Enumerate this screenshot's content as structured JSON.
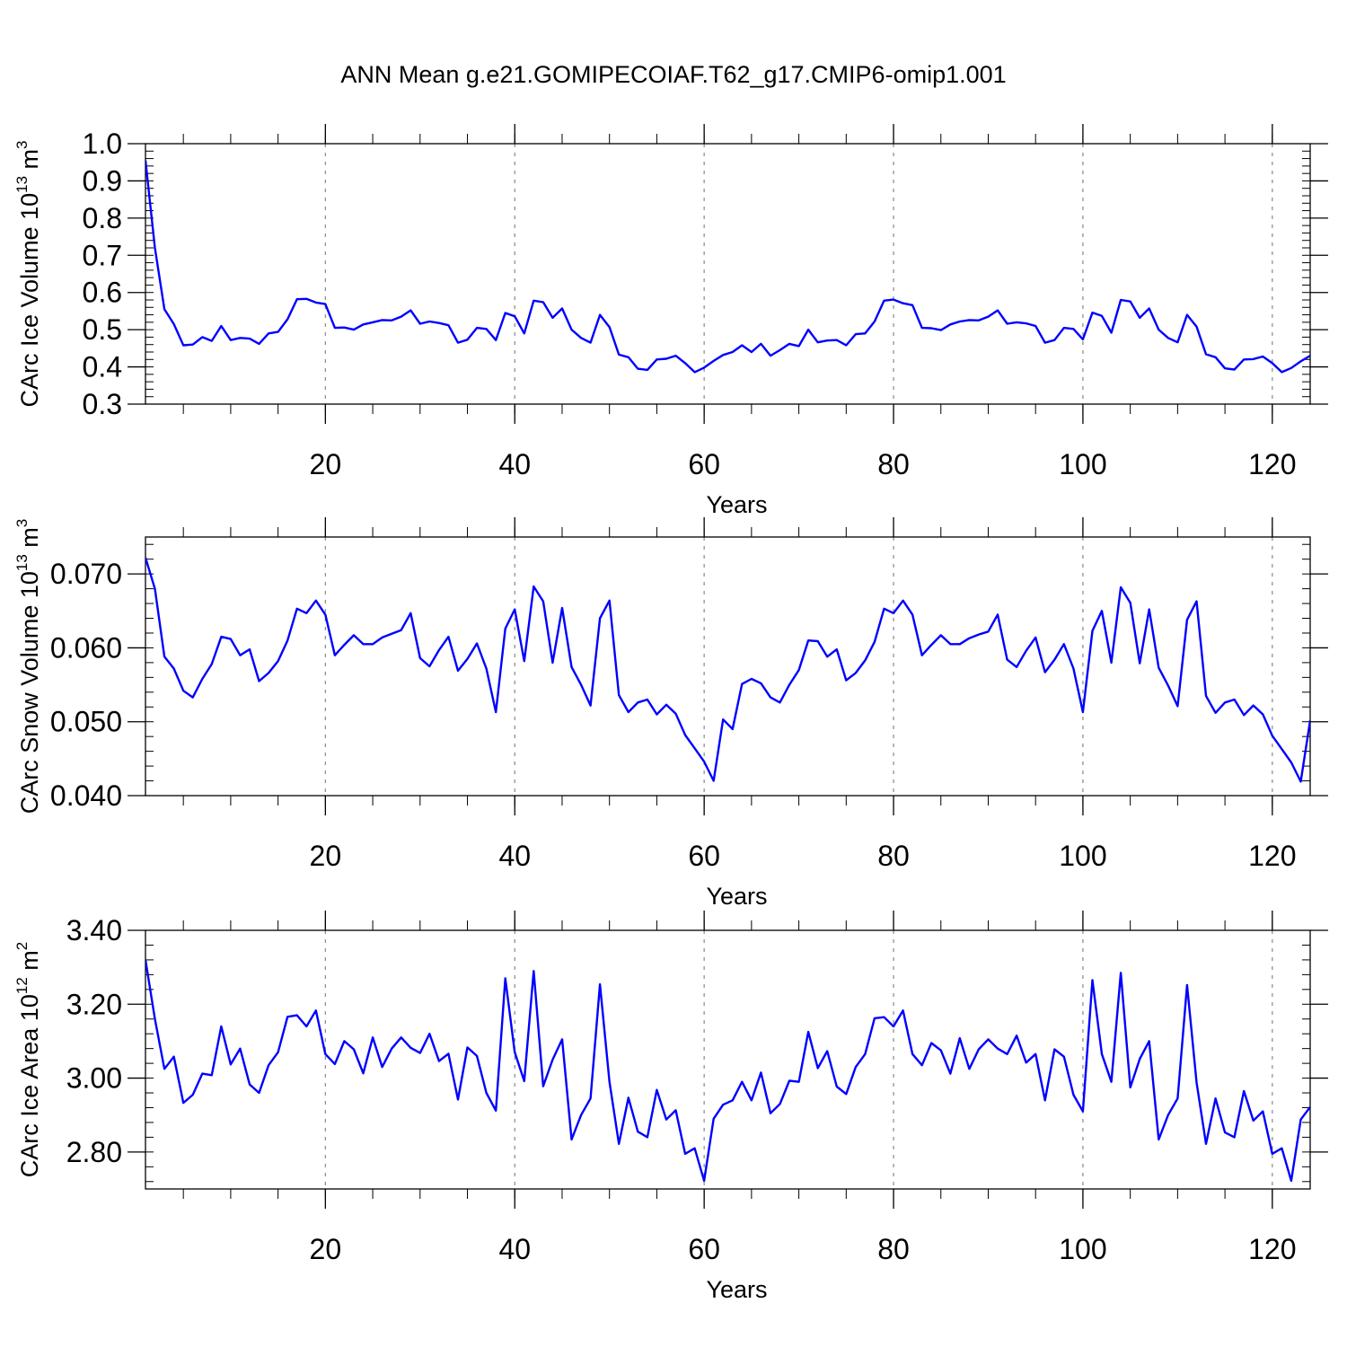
{
  "title": "ANN Mean g.e21.GOMIPECOIAF.T62_g17.CMIP6-omip1.001",
  "colors": {
    "line": "#0000ff",
    "axis": "#000000",
    "grid": "#888888"
  },
  "chart_data": [
    {
      "type": "line",
      "ylabel": "CArc Ice Volume 10",
      "ylabel_exp": "13",
      "ylabel_unit": " m",
      "ylabel_unit_exp": "3",
      "xlabel": "Years",
      "xlim": [
        1,
        124
      ],
      "ylim": [
        0.3,
        1.0
      ],
      "yticks": [
        0.3,
        0.4,
        0.5,
        0.6,
        0.7,
        0.8,
        0.9,
        1.0
      ],
      "ytick_labels": [
        "0.3",
        "0.4",
        "0.5",
        "0.6",
        "0.7",
        "0.8",
        "0.9",
        "1.0"
      ],
      "xticks": [
        20,
        40,
        60,
        80,
        100,
        120
      ],
      "xtick_labels": [
        "20",
        "40",
        "60",
        "80",
        "100",
        "120"
      ],
      "grid_x": true,
      "values": [
        0.955,
        0.72,
        0.555,
        0.515,
        0.458,
        0.46,
        0.48,
        0.47,
        0.51,
        0.472,
        0.478,
        0.476,
        0.462,
        0.49,
        0.494,
        0.528,
        0.582,
        0.583,
        0.573,
        0.569,
        0.505,
        0.506,
        0.5,
        0.514,
        0.52,
        0.526,
        0.525,
        0.535,
        0.552,
        0.516,
        0.522,
        0.518,
        0.512,
        0.465,
        0.473,
        0.505,
        0.502,
        0.472,
        0.545,
        0.536,
        0.49,
        0.578,
        0.574,
        0.532,
        0.557,
        0.5,
        0.478,
        0.465,
        0.54,
        0.507,
        0.433,
        0.426,
        0.395,
        0.392,
        0.42,
        0.422,
        0.43,
        0.41,
        0.386,
        0.398,
        0.416,
        0.432,
        0.44,
        0.458,
        0.44,
        0.462,
        0.43,
        0.445,
        0.462,
        0.456,
        0.5,
        0.466,
        0.471,
        0.472,
        0.458,
        0.488,
        0.49,
        0.522,
        0.578,
        0.581,
        0.571,
        0.566,
        0.505,
        0.504,
        0.499,
        0.514,
        0.522,
        0.526,
        0.525,
        0.535,
        0.552,
        0.516,
        0.52,
        0.517,
        0.51,
        0.465,
        0.472,
        0.505,
        0.502,
        0.474,
        0.546,
        0.537,
        0.492,
        0.58,
        0.576,
        0.532,
        0.557,
        0.5,
        0.478,
        0.466,
        0.54,
        0.508,
        0.434,
        0.426,
        0.396,
        0.393,
        0.42,
        0.421,
        0.428,
        0.41,
        0.386,
        0.397,
        0.415,
        0.43
      ]
    },
    {
      "type": "line",
      "ylabel": "CArc Snow Volume 10",
      "ylabel_exp": "13",
      "ylabel_unit": " m",
      "ylabel_unit_exp": "3",
      "xlabel": "Years",
      "xlim": [
        1,
        124
      ],
      "ylim": [
        0.04,
        0.075
      ],
      "yticks": [
        0.04,
        0.05,
        0.06,
        0.07
      ],
      "ytick_labels": [
        "0.040",
        "0.050",
        "0.060",
        "0.070"
      ],
      "xticks": [
        20,
        40,
        60,
        80,
        100,
        120
      ],
      "xtick_labels": [
        "20",
        "40",
        "60",
        "80",
        "100",
        "120"
      ],
      "grid_x": true,
      "values": [
        0.0722,
        0.068,
        0.0588,
        0.0572,
        0.0542,
        0.0533,
        0.0558,
        0.0578,
        0.0615,
        0.0612,
        0.059,
        0.0598,
        0.0555,
        0.0566,
        0.0582,
        0.061,
        0.0653,
        0.0647,
        0.0664,
        0.0645,
        0.059,
        0.0604,
        0.0617,
        0.0605,
        0.0605,
        0.0614,
        0.0619,
        0.0624,
        0.0647,
        0.0586,
        0.0575,
        0.0597,
        0.0615,
        0.0569,
        0.0585,
        0.0606,
        0.0572,
        0.0513,
        0.0626,
        0.0652,
        0.0582,
        0.0683,
        0.0663,
        0.058,
        0.0654,
        0.0574,
        0.055,
        0.0522,
        0.064,
        0.0664,
        0.0536,
        0.0513,
        0.0526,
        0.053,
        0.051,
        0.0523,
        0.0511,
        0.0482,
        0.0464,
        0.0446,
        0.042,
        0.0503,
        0.049,
        0.0551,
        0.0558,
        0.0552,
        0.0533,
        0.0526,
        0.055,
        0.057,
        0.061,
        0.0609,
        0.0588,
        0.0598,
        0.0556,
        0.0566,
        0.0583,
        0.0608,
        0.0653,
        0.0647,
        0.0664,
        0.0645,
        0.059,
        0.0604,
        0.0617,
        0.0605,
        0.0605,
        0.0613,
        0.0618,
        0.0622,
        0.0645,
        0.0584,
        0.0574,
        0.0596,
        0.0614,
        0.0567,
        0.0584,
        0.0605,
        0.0572,
        0.0513,
        0.0623,
        0.065,
        0.058,
        0.0682,
        0.0661,
        0.0579,
        0.0652,
        0.0573,
        0.0549,
        0.0521,
        0.0638,
        0.0663,
        0.0535,
        0.0512,
        0.0526,
        0.053,
        0.0509,
        0.0522,
        0.051,
        0.0481,
        0.0463,
        0.0445,
        0.0419,
        0.0502
      ]
    },
    {
      "type": "line",
      "ylabel": "CArc Ice Area 10",
      "ylabel_exp": "12",
      "ylabel_unit": " m",
      "ylabel_unit_exp": "2",
      "xlabel": "Years",
      "xlim": [
        1,
        124
      ],
      "ylim": [
        2.7,
        3.4
      ],
      "yticks": [
        2.8,
        3.0,
        3.2,
        3.4
      ],
      "ytick_labels": [
        "2.80",
        "3.00",
        "3.20",
        "3.40"
      ],
      "xticks": [
        20,
        40,
        60,
        80,
        100,
        120
      ],
      "xtick_labels": [
        "20",
        "40",
        "60",
        "80",
        "100",
        "120"
      ],
      "grid_x": true,
      "values": [
        3.32,
        3.16,
        3.025,
        3.058,
        2.933,
        2.955,
        3.012,
        3.008,
        3.14,
        3.037,
        3.08,
        2.983,
        2.96,
        3.035,
        3.07,
        3.166,
        3.17,
        3.14,
        3.183,
        3.065,
        3.038,
        3.1,
        3.078,
        3.013,
        3.11,
        3.03,
        3.08,
        3.11,
        3.082,
        3.068,
        3.12,
        3.046,
        3.066,
        2.942,
        3.083,
        3.06,
        2.96,
        2.912,
        3.27,
        3.07,
        2.992,
        3.29,
        2.978,
        3.05,
        3.105,
        2.834,
        2.9,
        2.945,
        3.254,
        2.99,
        2.822,
        2.947,
        2.855,
        2.84,
        2.968,
        2.888,
        2.913,
        2.795,
        2.81,
        2.722,
        2.89,
        2.928,
        2.94,
        2.99,
        2.94,
        3.015,
        2.905,
        2.93,
        2.993,
        2.99,
        3.125,
        3.027,
        3.073,
        2.977,
        2.957,
        3.03,
        3.065,
        3.162,
        3.165,
        3.14,
        3.183,
        3.065,
        3.035,
        3.095,
        3.075,
        3.012,
        3.108,
        3.025,
        3.078,
        3.105,
        3.08,
        3.065,
        3.115,
        3.042,
        3.065,
        2.94,
        3.078,
        3.058,
        2.955,
        2.91,
        3.265,
        3.065,
        2.99,
        3.285,
        2.975,
        3.052,
        3.1,
        2.834,
        2.9,
        2.945,
        3.252,
        2.988,
        2.822,
        2.945,
        2.853,
        2.84,
        2.965,
        2.885,
        2.91,
        2.795,
        2.81,
        2.722,
        2.888,
        2.922
      ]
    }
  ]
}
